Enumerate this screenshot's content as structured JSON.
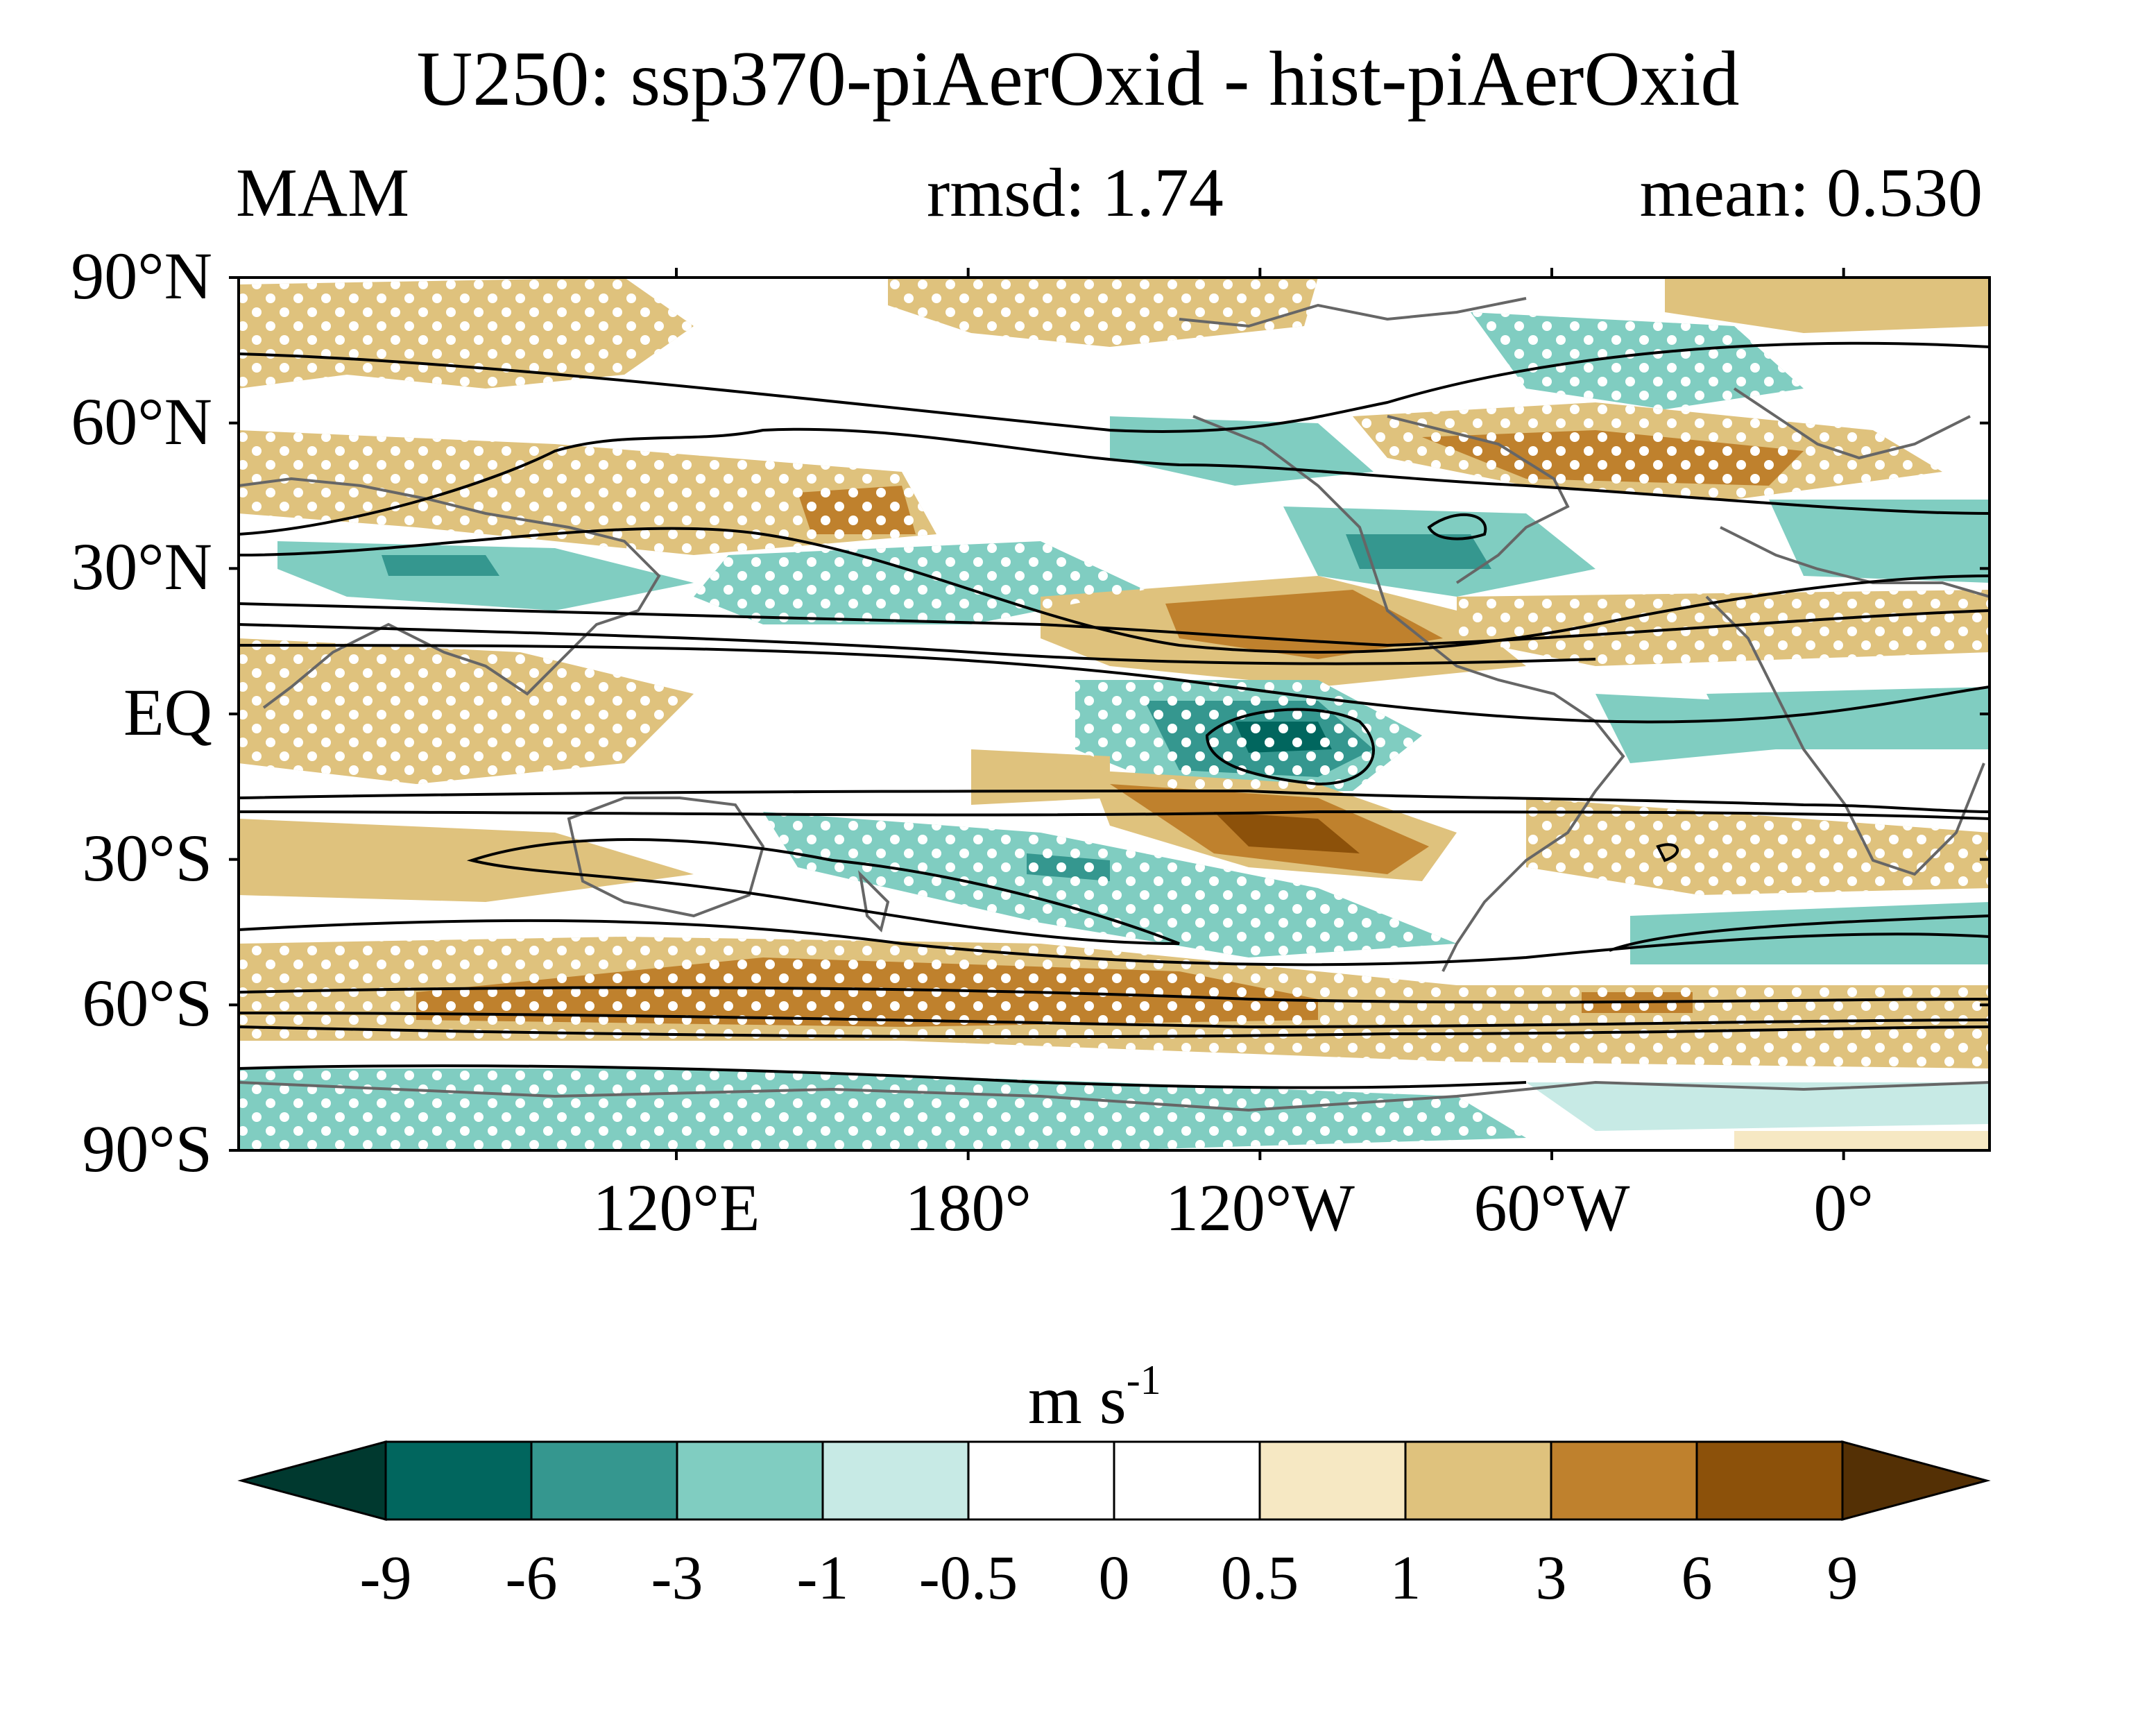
{
  "title": "U250: ssp370-piAerOxid - hist-piAerOxid",
  "season": "MAM",
  "rmsd": "rmsd: 1.74",
  "mean": "mean: 0.530",
  "units": {
    "base": "m s",
    "exponent": "-1"
  },
  "map": {
    "projection": "cylindrical equidistant",
    "lon_range": [
      30,
      390
    ],
    "lat_range": [
      -90,
      90
    ],
    "y_ticks": [
      {
        "lat": 90,
        "label": "90°N"
      },
      {
        "lat": 60,
        "label": "60°N"
      },
      {
        "lat": 30,
        "label": "30°N"
      },
      {
        "lat": 0,
        "label": "EQ"
      },
      {
        "lat": -30,
        "label": "30°S"
      },
      {
        "lat": -60,
        "label": "60°S"
      },
      {
        "lat": -90,
        "label": "90°S"
      }
    ],
    "x_ticks": [
      {
        "lon": 120,
        "label": "120°E"
      },
      {
        "lon": 180,
        "label": "180°"
      },
      {
        "lon": 240,
        "label": "120°W"
      },
      {
        "lon": 300,
        "label": "60°W"
      },
      {
        "lon": 360,
        "label": "0°"
      }
    ],
    "stippling": "white dots mark significant differences",
    "contours": "black lines show climatological U250"
  },
  "colorbar": {
    "levels": [
      "-9",
      "-6",
      "-3",
      "-1",
      "-0.5",
      "0",
      "0.5",
      "1",
      "3",
      "6",
      "9"
    ],
    "colors": [
      "#00392f",
      "#01665e",
      "#35978f",
      "#80cdc1",
      "#c7eae5",
      "#ffffff",
      "#ffffff",
      "#f6e8c3",
      "#dfc27d",
      "#bf812d",
      "#8c510a",
      "#543005"
    ]
  },
  "colors": {
    "neg_strong": "#01665e",
    "neg_mid": "#35978f",
    "neg_light": "#80cdc1",
    "neg_faint": "#c7eae5",
    "pos_faint": "#f6e8c3",
    "pos_light": "#dfc27d",
    "pos_mid": "#bf812d",
    "pos_strong": "#8c510a",
    "coast": "#666666"
  }
}
